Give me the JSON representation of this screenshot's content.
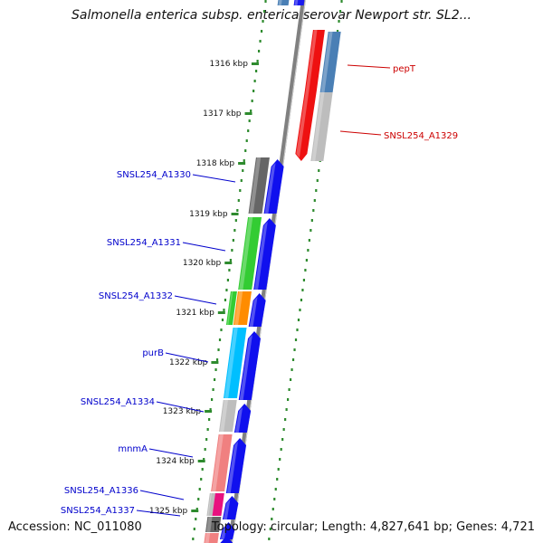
{
  "title": "Salmonella enterica subsp. enterica serovar Newport str. SL2...",
  "accession": "Accession: NC_011080",
  "summary": "Topology: circular; Length: 4,827,641 bp; Genes: 4,721",
  "colors": {
    "backbone": "#808080",
    "tick": "#2e8b2e",
    "forward_label": "#0000cc",
    "reverse_label": "#cc0000"
  },
  "ticks": [
    {
      "label": "1316 kbp"
    },
    {
      "label": "1317 kbp"
    },
    {
      "label": "1318 kbp"
    },
    {
      "label": "1319 kbp"
    },
    {
      "label": "1320 kbp"
    },
    {
      "label": "1321 kbp"
    },
    {
      "label": "1322 kbp"
    },
    {
      "label": "1323 kbp"
    },
    {
      "label": "1324 kbp"
    },
    {
      "label": "1325 kbp"
    }
  ],
  "reverse_genes": [
    {
      "label": "pepT",
      "color": "#ee1111"
    },
    {
      "label": "SNSL254_A1329",
      "color": "#ee1111"
    }
  ],
  "forward_genes": [
    {
      "label": "SNSL254_A1330"
    },
    {
      "label": "SNSL254_A1331"
    },
    {
      "label": "SNSL254_A1332"
    },
    {
      "label": "purB"
    },
    {
      "label": "SNSL254_A1334"
    },
    {
      "label": "mnmA"
    },
    {
      "label": "SNSL254_A1336"
    },
    {
      "label": "SNSL254_A1337"
    }
  ]
}
